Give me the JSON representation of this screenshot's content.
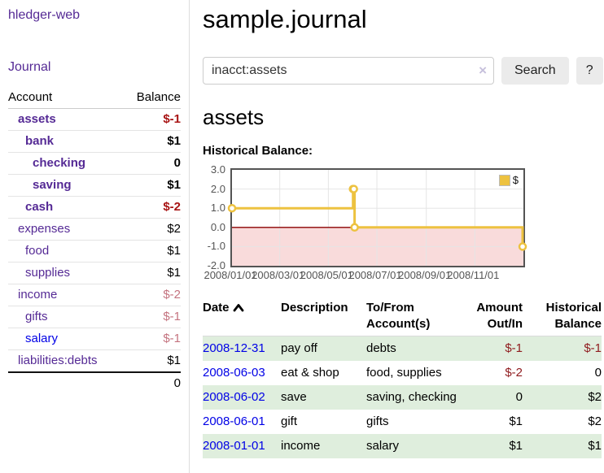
{
  "app": {
    "title": "hledger-web"
  },
  "colors": {
    "link_purple": "#552a95",
    "link_blue": "#0000e6",
    "negative_strong": "#a81414",
    "negative_weak": "#c4737f",
    "negative_table": "#8f1b1e",
    "row_stripe_green": "#dfeedd",
    "chart_series": "#edc240"
  },
  "sidebar": {
    "journal_link": "Journal",
    "accounts": {
      "headers": [
        "Account",
        "Balance"
      ],
      "rows": [
        {
          "name": "assets",
          "balance": "$-1",
          "indent": 0,
          "bold": true,
          "link_color": "purple"
        },
        {
          "name": "bank",
          "balance": "$1",
          "indent": 1,
          "bold": true,
          "link_color": "purple"
        },
        {
          "name": "checking",
          "balance": "0",
          "indent": 2,
          "bold": true,
          "link_color": "purple"
        },
        {
          "name": "saving",
          "balance": "$1",
          "indent": 2,
          "bold": true,
          "link_color": "purple"
        },
        {
          "name": "cash",
          "balance": "$-2",
          "indent": 1,
          "bold": true,
          "link_color": "purple"
        },
        {
          "name": "expenses",
          "balance": "$2",
          "indent": 0,
          "bold": false,
          "link_color": "purple"
        },
        {
          "name": "food",
          "balance": "$1",
          "indent": 1,
          "bold": false,
          "link_color": "purple"
        },
        {
          "name": "supplies",
          "balance": "$1",
          "indent": 1,
          "bold": false,
          "link_color": "purple"
        },
        {
          "name": "income",
          "balance": "$-2",
          "indent": 0,
          "bold": false,
          "link_color": "purple"
        },
        {
          "name": "gifts",
          "balance": "$-1",
          "indent": 1,
          "bold": false,
          "link_color": "purple"
        },
        {
          "name": "salary",
          "balance": "$-1",
          "indent": 1,
          "bold": false,
          "link_color": "blue"
        },
        {
          "name": "liabilities:debts",
          "balance": "$1",
          "indent": 0,
          "bold": false,
          "link_color": "purple"
        }
      ],
      "total": "0"
    }
  },
  "main": {
    "title": "sample.journal",
    "search": {
      "value": "inacct:assets",
      "clear_icon": "×",
      "button_label": "Search",
      "help_label": "?"
    },
    "account_heading": "assets"
  },
  "chart_data": {
    "type": "line",
    "step": true,
    "title": "Historical Balance:",
    "x_range": [
      "2008-01-01",
      "2009-01-01"
    ],
    "ylim": [
      -2,
      3
    ],
    "y_ticks": [
      "3.0",
      "2.0",
      "1.0",
      "0.0",
      "-1.0",
      "-2.0"
    ],
    "x_ticks": [
      "2008/01/01",
      "2008/03/01",
      "2008/05/01",
      "2008/07/01",
      "2008/09/01",
      "2008/11/01"
    ],
    "series": [
      {
        "name": "$",
        "color": "#edc240",
        "points": [
          [
            "2008-01-01",
            1
          ],
          [
            "2008-06-01",
            2
          ],
          [
            "2008-06-02",
            2
          ],
          [
            "2008-06-03",
            0
          ],
          [
            "2008-12-31",
            -1
          ]
        ]
      }
    ],
    "legend": {
      "label": "$",
      "position": "top-right"
    },
    "colors": {
      "negative_region": "#f9dbdb",
      "zero_line": "#8b0000",
      "grid": "#e5e5e5",
      "border": "#545454"
    }
  },
  "register": {
    "headers": {
      "date": "Date",
      "description": "Description",
      "accounts": "To/From Account(s)",
      "amount": "Amount Out/In",
      "balance": "Historical Balance"
    },
    "rows": [
      {
        "date": "2008-12-31",
        "description": "pay off",
        "accounts": "debts",
        "amount": "$-1",
        "balance": "$-1"
      },
      {
        "date": "2008-06-03",
        "description": "eat & shop",
        "accounts": "food, supplies",
        "amount": "$-2",
        "balance": "0"
      },
      {
        "date": "2008-06-02",
        "description": "save",
        "accounts": "saving, checking",
        "amount": "0",
        "balance": "$2"
      },
      {
        "date": "2008-06-01",
        "description": "gift",
        "accounts": "gifts",
        "amount": "$1",
        "balance": "$2"
      },
      {
        "date": "2008-01-01",
        "description": "income",
        "accounts": "salary",
        "amount": "$1",
        "balance": "$1"
      }
    ]
  }
}
